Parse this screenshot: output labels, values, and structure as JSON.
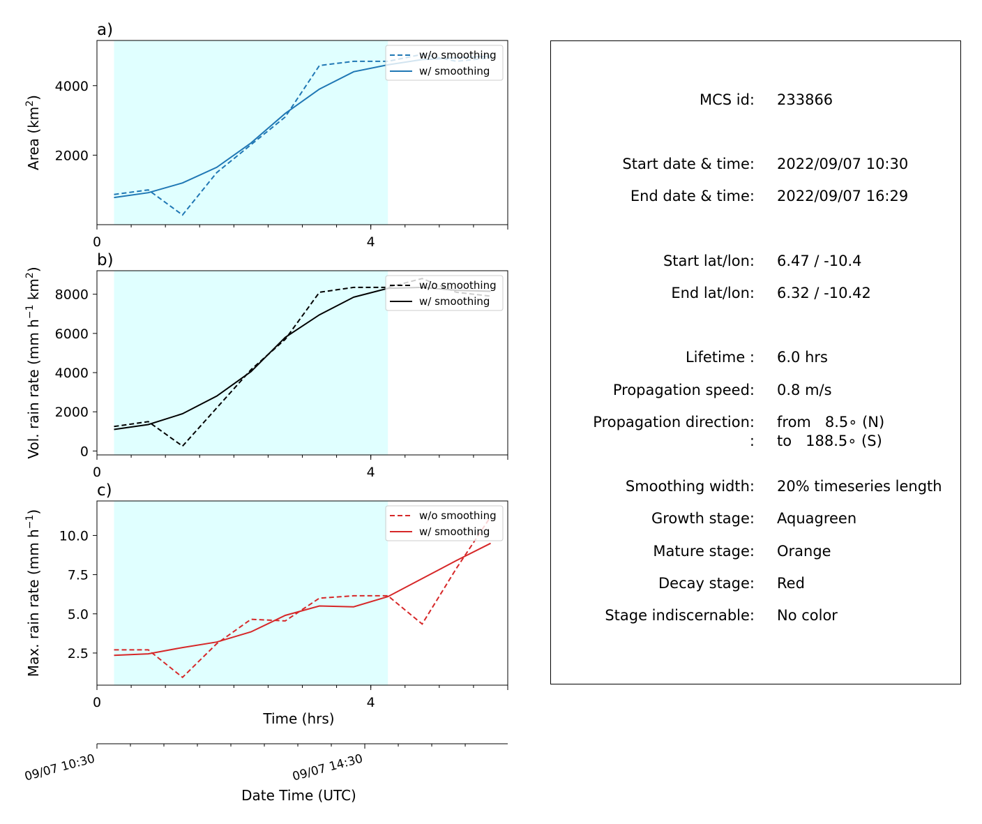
{
  "colors": {
    "panel_a": "#1f77b4",
    "panel_b": "#000000",
    "panel_c": "#d62728",
    "growth_shading": "#e0ffff"
  },
  "panels": [
    {
      "label": "a)",
      "ylabel_main": "Area  (km",
      "ylabel_sup": "2",
      "ylabel_tail": ")",
      "yticks": [
        2000,
        4000
      ],
      "ylim": [
        0,
        5300
      ],
      "ytick_decimals": 0,
      "xtick_labels": [
        "0",
        "4"
      ],
      "legend": [
        "w/o smoothing",
        "w/ smoothing"
      ]
    },
    {
      "label": "b)",
      "ylabel_main": "Vol. rain rate (mm h",
      "ylabel_sup": "−1",
      "ylabel_tail": " km",
      "ylabel_sup2": "2",
      "ylabel_tail2": ")",
      "yticks": [
        0,
        2000,
        4000,
        6000,
        8000
      ],
      "ylim": [
        -200,
        9200
      ],
      "ytick_decimals": 0,
      "xtick_labels": [
        "0",
        "4"
      ],
      "legend": [
        "w/o smoothing",
        "w/ smoothing"
      ]
    },
    {
      "label": "c)",
      "ylabel_main": "Max. rain rate  (mm h",
      "ylabel_sup": "−1",
      "ylabel_tail": ")",
      "yticks": [
        2.5,
        5.0,
        7.5,
        10.0
      ],
      "ylim": [
        0.45,
        12.2
      ],
      "ytick_decimals": 1,
      "xtick_labels": [
        "0",
        "4"
      ],
      "xlabel": "Time (hrs)",
      "legend": [
        "w/o smoothing",
        "w/ smoothing"
      ]
    }
  ],
  "chart_data": [
    {
      "type": "line",
      "panel": "a)",
      "ylabel": "Area  (km2)",
      "xlim": [
        0,
        6
      ],
      "ylim": [
        0,
        5300
      ],
      "growth_span": [
        0.25,
        4.25
      ],
      "series": [
        {
          "name": "w/o smoothing",
          "style": "dashed",
          "x": [
            0.25,
            0.75,
            1.25,
            1.75,
            2.25,
            2.75,
            3.25,
            3.75,
            4.25,
            4.75,
            5.25,
            5.75
          ],
          "y": [
            870,
            1000,
            280,
            1500,
            2300,
            3100,
            4580,
            4700,
            4700,
            4900,
            4700,
            4800
          ]
        },
        {
          "name": "w/ smoothing",
          "style": "solid",
          "x": [
            0.25,
            0.75,
            1.25,
            1.75,
            2.25,
            2.75,
            3.25,
            3.75,
            4.25,
            4.75,
            5.25,
            5.75
          ],
          "y": [
            780,
            920,
            1200,
            1650,
            2350,
            3200,
            3900,
            4400,
            4600,
            4750,
            4800,
            4850
          ]
        }
      ]
    },
    {
      "type": "line",
      "panel": "b)",
      "ylabel": "Vol. rain rate (mm h−1 km2)",
      "xlim": [
        0,
        6
      ],
      "ylim": [
        -200,
        9200
      ],
      "growth_span": [
        0.25,
        4.25
      ],
      "series": [
        {
          "name": "w/o smoothing",
          "style": "dashed",
          "x": [
            0.25,
            0.75,
            1.25,
            1.75,
            2.25,
            2.75,
            3.25,
            3.75,
            4.25,
            4.75,
            5.25,
            5.75
          ],
          "y": [
            1250,
            1500,
            250,
            2200,
            4150,
            5700,
            8100,
            8350,
            8350,
            8800,
            8100,
            7900
          ]
        },
        {
          "name": "w/ smoothing",
          "style": "solid",
          "x": [
            0.25,
            0.75,
            1.25,
            1.75,
            2.25,
            2.75,
            3.25,
            3.75,
            4.25,
            4.75,
            5.25,
            5.75
          ],
          "y": [
            1100,
            1350,
            1900,
            2800,
            4050,
            5800,
            6950,
            7850,
            8300,
            8350,
            8200,
            8150
          ]
        }
      ]
    },
    {
      "type": "line",
      "panel": "c)",
      "ylabel": "Max. rain rate  (mm h−1)",
      "xlabel": "Time (hrs)",
      "xlim": [
        0,
        6
      ],
      "ylim": [
        0.45,
        12.2
      ],
      "growth_span": [
        0.25,
        4.25
      ],
      "series": [
        {
          "name": "w/o smoothing",
          "style": "dashed",
          "x": [
            0.25,
            0.75,
            1.25,
            1.75,
            2.25,
            2.75,
            3.25,
            3.75,
            4.25,
            4.75,
            5.25,
            5.75
          ],
          "y": [
            2.7,
            2.7,
            0.95,
            3.1,
            4.65,
            4.55,
            6.0,
            6.15,
            6.15,
            4.35,
            7.9,
            11.2
          ]
        },
        {
          "name": "w/ smoothing",
          "style": "solid",
          "x": [
            0.25,
            0.75,
            1.25,
            1.75,
            2.25,
            2.75,
            3.25,
            3.75,
            4.25,
            4.75,
            5.25,
            5.75
          ],
          "y": [
            2.35,
            2.45,
            2.85,
            3.2,
            3.85,
            4.9,
            5.5,
            5.45,
            6.1,
            7.25,
            8.4,
            9.5
          ]
        }
      ]
    }
  ],
  "date_axis": {
    "xlabel": "Date Time (UTC)",
    "tick_labels": [
      "09/07 10:30",
      "09/07 14:30"
    ]
  },
  "info": {
    "rows": [
      {
        "label": "MCS id:",
        "value": "233866"
      },
      {
        "label": "Start date & time:",
        "value": "2022/09/07 10:30"
      },
      {
        "label": "End date & time:",
        "value": "2022/09/07 16:29"
      },
      {
        "label": "Start lat/lon:",
        "value": "6.47 / -10.4"
      },
      {
        "label": "End lat/lon:",
        "value": "6.32 / -10.42"
      },
      {
        "label": "Lifetime :",
        "value": "6.0 hrs"
      },
      {
        "label": "Propagation speed:",
        "value": "0.8 m/s"
      },
      {
        "label": "Propagation direction:",
        "value": "from   8.5∘ (N)"
      },
      {
        "label": ":",
        "value": "to   188.5∘ (S)"
      },
      {
        "label": "Smoothing width:",
        "value": "20% timeseries length"
      },
      {
        "label": "Growth stage:",
        "value": "Aquagreen"
      },
      {
        "label": "Mature stage:",
        "value": "Orange"
      },
      {
        "label": "Decay stage:",
        "value": "Red"
      },
      {
        "label": "Stage indiscernable:",
        "value": "No color"
      }
    ]
  }
}
